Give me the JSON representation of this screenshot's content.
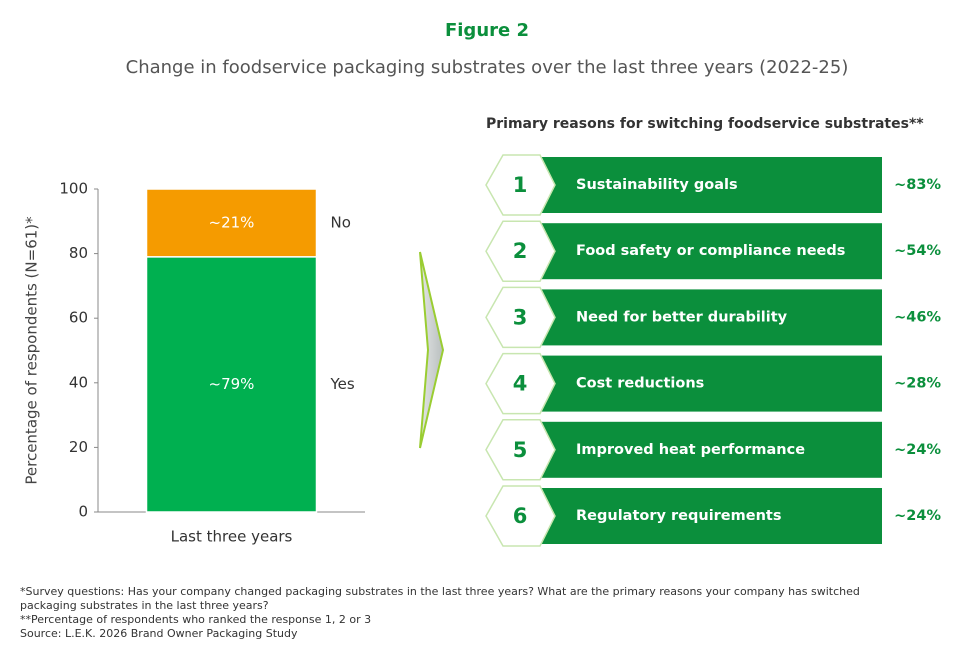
{
  "header": {
    "figure": "Figure 2",
    "title": "Change in foodservice packaging substrates over the last three years (2022-25)"
  },
  "chart_data": [
    {
      "type": "stacked_bar",
      "ylabel": "Percentage of respondents (N=61)*",
      "categories": [
        "Last three years"
      ],
      "series": [
        {
          "name": "Yes",
          "color": "#00b050",
          "values": [
            79
          ],
          "value_labels": [
            "~79%"
          ]
        },
        {
          "name": "No",
          "color": "#f59b00",
          "values": [
            21
          ],
          "value_labels": [
            "~21%"
          ]
        }
      ],
      "ylim": [
        0,
        100
      ],
      "yticks": [
        0,
        20,
        40,
        60,
        80,
        100
      ]
    },
    {
      "type": "ranked_list",
      "title": "Primary reasons for switching foodservice substrates**",
      "ranks": [
        1,
        2,
        3,
        4,
        5,
        6
      ],
      "categories": [
        "Sustainability goals",
        "Food safety or compliance needs",
        "Need for better durability",
        "Cost reductions",
        "Improved heat performance",
        "Regulatory requirements"
      ],
      "values": [
        83,
        54,
        46,
        28,
        24,
        24
      ],
      "value_labels": [
        "~83%",
        "~54%",
        "~46%",
        "~28%",
        "~24%",
        "~24%"
      ],
      "color": "#0b8f3c"
    }
  ],
  "footnotes": [
    "*Survey questions: Has your company changed packaging substrates in the last three years? What are the primary reasons your company has switched packaging substrates in the last three years?",
    "**Percentage of respondents who ranked the response 1, 2 or 3",
    "Source: L.E.K. 2026 Brand Owner Packaging Study"
  ]
}
